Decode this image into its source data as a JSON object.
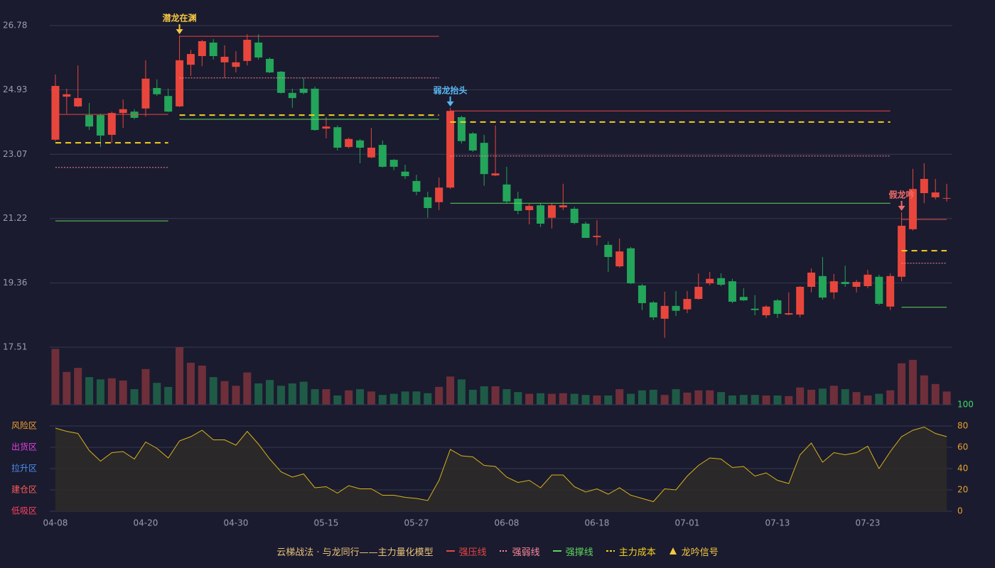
{
  "chart_data": [
    {
      "type": "candlestick",
      "legend_title": "云梯战法 · 与龙同行——主力量化模型",
      "categories": [
        "04-08",
        null,
        null,
        null,
        null,
        null,
        null,
        null,
        "04-20",
        null,
        null,
        null,
        null,
        null,
        null,
        null,
        "04-30",
        null,
        null,
        null,
        null,
        null,
        null,
        null,
        "05-15",
        null,
        null,
        null,
        null,
        null,
        null,
        null,
        "05-27",
        null,
        null,
        null,
        null,
        null,
        null,
        null,
        "06-08",
        null,
        null,
        null,
        null,
        null,
        null,
        null,
        "06-18",
        null,
        null,
        null,
        null,
        null,
        null,
        null,
        "07-01",
        null,
        null,
        null,
        null,
        null,
        null,
        null,
        "07-13",
        null,
        null,
        null,
        null,
        null,
        null,
        null,
        "07-23",
        null,
        null,
        null,
        null,
        null,
        null,
        null
      ],
      "open": [
        23.49,
        24.73,
        24.45,
        24.2,
        24.2,
        23.63,
        24.26,
        24.3,
        24.39,
        24.98,
        24.75,
        24.45,
        25.65,
        25.9,
        26.29,
        25.72,
        25.59,
        25.76,
        26.29,
        25.82,
        25.45,
        24.84,
        24.96,
        24.96,
        23.81,
        23.85,
        23.28,
        23.47,
        22.98,
        23.34,
        22.91,
        22.57,
        22.3,
        21.83,
        21.69,
        22.11,
        24.14,
        23.67,
        23.4,
        22.46,
        22.2,
        21.79,
        21.46,
        21.6,
        21.24,
        21.54,
        21.5,
        21.07,
        20.68,
        20.46,
        19.84,
        20.36,
        19.29,
        18.8,
        18.33,
        18.7,
        18.6,
        18.9,
        19.35,
        19.5,
        19.41,
        18.96,
        18.62,
        18.43,
        18.86,
        18.45,
        18.45,
        19.25,
        19.56,
        19.09,
        19.39,
        19.25,
        19.27,
        19.54,
        18.68,
        19.54,
        20.91,
        21.95,
        21.83,
        21.79
      ],
      "high": [
        25.37,
        24.96,
        25.63,
        24.55,
        24.24,
        24.3,
        24.65,
        24.37,
        25.78,
        25.23,
        24.96,
        26.49,
        26.08,
        26.37,
        26.39,
        26.21,
        26.04,
        26.53,
        26.53,
        25.86,
        25.47,
        24.96,
        25.27,
        25.02,
        24.14,
        23.9,
        23.55,
        23.51,
        23.83,
        23.47,
        22.93,
        22.77,
        22.48,
        21.99,
        22.4,
        24.41,
        24.18,
        23.71,
        23.63,
        23.9,
        22.71,
        21.99,
        21.64,
        21.66,
        21.66,
        22.22,
        21.56,
        21.13,
        21.17,
        20.56,
        20.64,
        20.4,
        19.33,
        18.84,
        19.11,
        19.13,
        19.13,
        19.64,
        19.68,
        19.64,
        19.48,
        19.21,
        19.01,
        18.72,
        18.9,
        19.09,
        19.27,
        19.78,
        20.11,
        19.62,
        19.86,
        19.45,
        19.74,
        19.6,
        19.64,
        21.4,
        22.65,
        22.81,
        22.36,
        22.22
      ],
      "low": [
        23.45,
        24.24,
        24.43,
        23.77,
        23.28,
        23.4,
        23.83,
        24.08,
        24.16,
        24.75,
        24.28,
        24.43,
        25.33,
        25.61,
        25.8,
        25.27,
        25.43,
        25.63,
        25.8,
        25.41,
        24.82,
        24.41,
        24.8,
        23.75,
        23.53,
        23.18,
        23.24,
        22.81,
        22.96,
        22.69,
        22.61,
        22.36,
        21.89,
        21.24,
        21.46,
        22.07,
        23.38,
        23.14,
        22.16,
        22.44,
        21.66,
        21.34,
        21.05,
        20.97,
        20.93,
        21.46,
        21.05,
        20.66,
        20.44,
        19.68,
        19.8,
        19.33,
        18.58,
        18.29,
        17.78,
        18.41,
        18.49,
        18.88,
        19.29,
        19.27,
        18.78,
        18.84,
        18.43,
        18.35,
        18.35,
        18.43,
        18.37,
        19.09,
        18.88,
        18.9,
        19.25,
        19.09,
        19.21,
        18.72,
        18.58,
        19.41,
        20.87,
        21.66,
        21.77,
        21.71
      ],
      "close": [
        25.04,
        24.8,
        24.69,
        23.87,
        23.61,
        24.26,
        24.37,
        24.12,
        25.25,
        24.8,
        24.3,
        25.78,
        25.96,
        26.33,
        25.9,
        25.88,
        25.72,
        26.37,
        25.86,
        25.43,
        24.84,
        24.69,
        24.84,
        23.77,
        23.87,
        23.26,
        23.51,
        23.26,
        23.26,
        22.71,
        22.71,
        22.44,
        21.99,
        21.52,
        22.11,
        24.32,
        23.45,
        23.18,
        22.5,
        22.52,
        21.71,
        21.44,
        21.58,
        21.07,
        21.6,
        21.6,
        21.09,
        20.66,
        20.72,
        20.11,
        20.27,
        19.35,
        18.78,
        18.37,
        18.7,
        18.56,
        18.9,
        19.25,
        19.48,
        19.31,
        18.82,
        18.86,
        18.58,
        18.68,
        18.47,
        18.49,
        19.25,
        19.66,
        18.94,
        19.41,
        19.33,
        19.39,
        19.6,
        18.76,
        19.56,
        21.01,
        22.07,
        22.36,
        21.97,
        21.81
      ],
      "up_color": "#e8463c",
      "down_color": "#23a55a",
      "ylim": [
        17.51,
        26.78
      ],
      "yticks": [
        17.51,
        19.36,
        21.22,
        23.07,
        24.93,
        26.78
      ],
      "grid": true,
      "series": [
        {
          "name": "强压线",
          "color": "#e84545",
          "style": "solid",
          "values": [
            24.22,
            24.22,
            24.22,
            24.22,
            24.22,
            24.22,
            24.22,
            24.22,
            24.22,
            24.22,
            24.22,
            26.47,
            26.47,
            26.47,
            26.47,
            26.47,
            26.47,
            26.47,
            26.47,
            26.47,
            26.47,
            26.47,
            26.47,
            26.47,
            26.47,
            26.47,
            26.47,
            26.47,
            26.47,
            26.47,
            26.47,
            26.47,
            26.47,
            26.47,
            26.47,
            24.32,
            24.32,
            24.32,
            24.32,
            24.32,
            24.32,
            24.32,
            24.32,
            24.32,
            24.32,
            24.32,
            24.32,
            24.32,
            24.32,
            24.32,
            24.32,
            24.32,
            24.32,
            24.32,
            24.32,
            24.32,
            24.32,
            24.32,
            24.32,
            24.32,
            24.32,
            24.32,
            24.32,
            24.32,
            24.32,
            24.32,
            24.32,
            24.32,
            24.32,
            24.32,
            24.32,
            24.32,
            24.32,
            24.32,
            24.32,
            21.19,
            21.19,
            21.19,
            21.19,
            21.19
          ]
        },
        {
          "name": "强弱线",
          "color": "#ff8a9a",
          "style": "dotted",
          "values": [
            22.69,
            22.69,
            22.69,
            22.69,
            22.69,
            22.69,
            22.69,
            22.69,
            22.69,
            22.69,
            22.69,
            25.27,
            25.27,
            25.27,
            25.27,
            25.27,
            25.27,
            25.27,
            25.27,
            25.27,
            25.27,
            25.27,
            25.27,
            25.27,
            25.27,
            25.27,
            25.27,
            25.27,
            25.27,
            25.27,
            25.27,
            25.27,
            25.27,
            25.27,
            25.27,
            23.02,
            23.02,
            23.02,
            23.02,
            23.02,
            23.02,
            23.02,
            23.02,
            23.02,
            23.02,
            23.02,
            23.02,
            23.02,
            23.02,
            23.02,
            23.02,
            23.02,
            23.02,
            23.02,
            23.02,
            23.02,
            23.02,
            23.02,
            23.02,
            23.02,
            23.02,
            23.02,
            23.02,
            23.02,
            23.02,
            23.02,
            23.02,
            23.02,
            23.02,
            23.02,
            23.02,
            23.02,
            23.02,
            23.02,
            23.02,
            19.93,
            19.93,
            19.93,
            19.93,
            19.93
          ]
        },
        {
          "name": "强撑线",
          "color": "#5fd45f",
          "style": "solid",
          "values": [
            21.15,
            21.15,
            21.15,
            21.15,
            21.15,
            21.15,
            21.15,
            21.15,
            21.15,
            21.15,
            21.15,
            24.08,
            24.08,
            24.08,
            24.08,
            24.08,
            24.08,
            24.08,
            24.08,
            24.08,
            24.08,
            24.08,
            24.08,
            24.08,
            24.08,
            24.08,
            24.08,
            24.08,
            24.08,
            24.08,
            24.08,
            24.08,
            24.08,
            24.08,
            24.08,
            21.66,
            21.66,
            21.66,
            21.66,
            21.66,
            21.66,
            21.66,
            21.66,
            21.66,
            21.66,
            21.66,
            21.66,
            21.66,
            21.66,
            21.66,
            21.66,
            21.66,
            21.66,
            21.66,
            21.66,
            21.66,
            21.66,
            21.66,
            21.66,
            21.66,
            21.66,
            21.66,
            21.66,
            21.66,
            21.66,
            21.66,
            21.66,
            21.66,
            21.66,
            21.66,
            21.66,
            21.66,
            21.66,
            21.66,
            21.66,
            18.66,
            18.66,
            18.66,
            18.66,
            18.66
          ]
        },
        {
          "name": "主力成本",
          "color": "#f5d020",
          "style": "dashed",
          "values": [
            23.4,
            23.4,
            23.4,
            23.4,
            23.4,
            23.4,
            23.4,
            23.4,
            23.4,
            23.4,
            23.4,
            24.2,
            24.2,
            24.2,
            24.2,
            24.2,
            24.2,
            24.2,
            24.2,
            24.2,
            24.2,
            24.2,
            24.2,
            24.2,
            24.2,
            24.2,
            24.2,
            24.2,
            24.2,
            24.2,
            24.2,
            24.2,
            24.2,
            24.2,
            24.2,
            24.0,
            24.0,
            24.0,
            24.0,
            24.0,
            24.0,
            24.0,
            24.0,
            24.0,
            24.0,
            24.0,
            24.0,
            24.0,
            24.0,
            24.0,
            24.0,
            24.0,
            24.0,
            24.0,
            24.0,
            24.0,
            24.0,
            24.0,
            24.0,
            24.0,
            24.0,
            24.0,
            24.0,
            24.0,
            24.0,
            24.0,
            24.0,
            24.0,
            24.0,
            24.0,
            24.0,
            24.0,
            24.0,
            24.0,
            24.0,
            20.29,
            20.29,
            20.29,
            20.29,
            20.29
          ]
        }
      ],
      "signal_name": "龙吟信号",
      "signal_legend_color": "#f5c842",
      "signals": [
        null,
        null,
        null,
        null,
        null,
        null,
        null,
        null,
        null,
        null,
        null,
        "潜龙在渊",
        null,
        null,
        null,
        null,
        null,
        null,
        null,
        null,
        null,
        null,
        null,
        null,
        null,
        null,
        null,
        null,
        null,
        null,
        null,
        null,
        null,
        null,
        null,
        "弱龙抬头",
        null,
        null,
        null,
        null,
        null,
        null,
        null,
        null,
        null,
        null,
        null,
        null,
        null,
        null,
        null,
        null,
        null,
        null,
        null,
        null,
        null,
        null,
        null,
        null,
        null,
        null,
        null,
        null,
        null,
        null,
        null,
        null,
        null,
        null,
        null,
        null,
        null,
        null,
        null,
        "假龙吟",
        null,
        null,
        null,
        null
      ],
      "signal_colors": [
        "#f5c842",
        "#5ab8f5",
        "#f06a6a"
      ]
    },
    {
      "type": "bar",
      "values": [
        97,
        57,
        64,
        48,
        44,
        46,
        42,
        27,
        62,
        38,
        31,
        100,
        73,
        68,
        48,
        41,
        33,
        56,
        37,
        43,
        33,
        37,
        40,
        27,
        27,
        16,
        25,
        27,
        23,
        17,
        19,
        23,
        23,
        20,
        31,
        49,
        44,
        26,
        32,
        32,
        27,
        22,
        19,
        20,
        19,
        20,
        19,
        17,
        16,
        16,
        27,
        19,
        25,
        26,
        17,
        27,
        21,
        25,
        25,
        22,
        16,
        17,
        17,
        16,
        16,
        15,
        30,
        26,
        28,
        33,
        27,
        22,
        16,
        19,
        25,
        72,
        78,
        51,
        36,
        23
      ],
      "up_color": "#6e2f3a",
      "down_color": "#1f5a46",
      "ylim": [
        0,
        100
      ]
    },
    {
      "type": "line",
      "values": [
        78,
        75,
        73,
        57,
        47,
        55,
        56,
        49,
        65,
        59,
        50,
        66,
        70,
        76,
        67,
        67,
        62,
        75,
        63,
        49,
        37,
        32,
        35,
        22,
        23,
        17,
        24,
        21,
        21,
        15,
        15,
        13,
        12,
        10,
        29,
        58,
        52,
        51,
        43,
        42,
        32,
        27,
        29,
        22,
        34,
        34,
        23,
        18,
        21,
        16,
        22,
        15,
        12,
        9,
        21,
        20,
        33,
        43,
        50,
        49,
        41,
        42,
        33,
        36,
        29,
        26,
        53,
        64,
        46,
        55,
        53,
        55,
        61,
        40,
        56,
        70,
        76,
        79,
        73,
        70
      ],
      "color": "#d9b21c",
      "fill": "#2e2a27",
      "ylim": [
        0,
        100
      ],
      "yticks": [
        0,
        20,
        40,
        60,
        80,
        100
      ],
      "ytick_colors": [
        "#e8a030",
        "#e8a030",
        "#e8a030",
        "#e8a030",
        "#e8a030",
        "#3ddc6a"
      ],
      "zone_ticks": [
        {
          "value": 80,
          "label": "风险区",
          "color": "#f0a030"
        },
        {
          "value": 60,
          "label": "出货区",
          "color": "#e040e0"
        },
        {
          "value": 40,
          "label": "拉升区",
          "color": "#4a8ff0"
        },
        {
          "value": 20,
          "label": "建仓区",
          "color": "#ff5a5a"
        },
        {
          "value": 0,
          "label": "低吸区",
          "color": "#ff4060"
        }
      ]
    }
  ]
}
